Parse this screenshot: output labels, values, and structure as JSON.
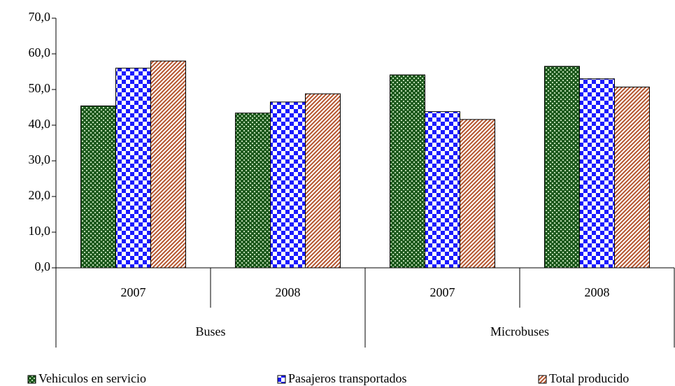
{
  "chart_data": {
    "type": "bar",
    "categories": [
      "2007",
      "2008",
      "2007",
      "2008"
    ],
    "groups": [
      "Buses",
      "Microbuses"
    ],
    "series": [
      {
        "name": "Vehiculos en servicio",
        "color": "#1e5a1e",
        "pattern": "dots",
        "values": [
          45.4,
          43.4,
          54.1,
          56.5
        ]
      },
      {
        "name": "Pasajeros transportados",
        "color": "#1a1aff",
        "pattern": "checker",
        "values": [
          56.0,
          46.5,
          43.8,
          53.0
        ]
      },
      {
        "name": "Total producido",
        "color": "#b5552e",
        "pattern": "hatch",
        "values": [
          58.0,
          48.8,
          41.6,
          50.7
        ]
      }
    ],
    "ylim": [
      0,
      70
    ],
    "yticks": [
      {
        "value": 0,
        "label": "0,0"
      },
      {
        "value": 10,
        "label": "10,0"
      },
      {
        "value": 20,
        "label": "20,0"
      },
      {
        "value": 30,
        "label": "30,0"
      },
      {
        "value": 40,
        "label": "40,0"
      },
      {
        "value": 50,
        "label": "50,0"
      },
      {
        "value": 60,
        "label": "60,0"
      },
      {
        "value": 70,
        "label": "70,0"
      }
    ],
    "grid": false
  }
}
